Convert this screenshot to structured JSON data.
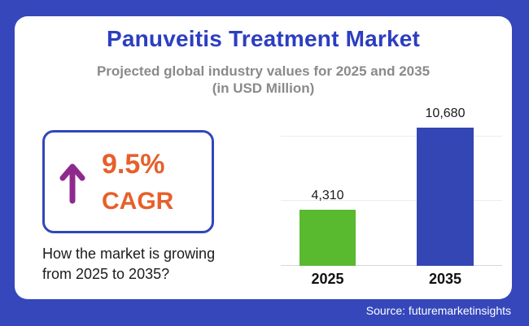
{
  "header": {
    "title": "Panuveitis Treatment Market",
    "subtitle_line1": "Projected global industry values for 2025 and 2035",
    "subtitle_line2": "(in USD Million)"
  },
  "cagr": {
    "value": "9.5%",
    "label": "CAGR",
    "caption_line1": "How the market is growing",
    "caption_line2": "from 2025 to 2035?"
  },
  "chart_data": {
    "type": "bar",
    "categories": [
      "2025",
      "2035"
    ],
    "values": [
      4310,
      10680
    ],
    "value_labels": [
      "4,310",
      "10,680"
    ],
    "bar_colors": [
      "#59b92f",
      "#3346b4"
    ],
    "title": "Panuveitis Treatment Market",
    "xlabel": "",
    "ylabel": "USD Million",
    "ylim": [
      0,
      10680
    ],
    "gridline_values": [
      0,
      5000,
      10000
    ],
    "grid": true,
    "legend": false
  },
  "footer": {
    "source": "Source: futuremarketinsights"
  },
  "colors": {
    "frame_blue": "#3547bb",
    "title_blue": "#2c3ec0",
    "subtitle_gray": "#8a8a8a",
    "accent_orange": "#e6602b",
    "arrow_purple": "#8e2a8e",
    "box_border_blue": "#3246bb",
    "bar_green": "#59b92f",
    "bar_blue": "#3346b4"
  }
}
